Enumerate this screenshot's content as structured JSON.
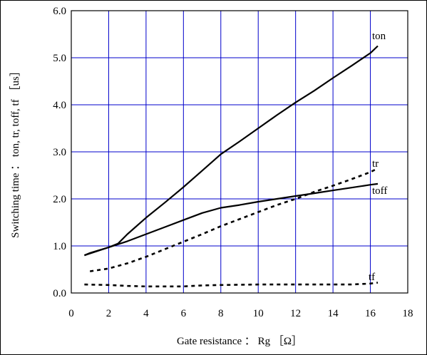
{
  "chart_data": {
    "type": "line",
    "xlabel": "Gate resistance ： Rg ［Ω］",
    "ylabel": "Switching time ： ton, tr, toff, tf ［us］",
    "xlim": [
      0,
      18
    ],
    "ylim": [
      0,
      6
    ],
    "xticks": [
      "0",
      "2",
      "4",
      "6",
      "8",
      "10",
      "12",
      "14",
      "16",
      "18"
    ],
    "yticks": [
      "0.0",
      "1.0",
      "2.0",
      "3.0",
      "4.0",
      "5.0",
      "6.0"
    ],
    "grid": true,
    "grid_color": "#0000cc",
    "series": [
      {
        "name": "ton",
        "style": "solid",
        "x": [
          0.7,
          1.0,
          1.5,
          2.0,
          2.5,
          3.0,
          4.0,
          5.0,
          6.0,
          7.0,
          8.0,
          9.0,
          10.0,
          11.0,
          12.0,
          13.0,
          14.0,
          15.0,
          16.0,
          16.4
        ],
        "y": [
          0.8,
          0.85,
          0.91,
          0.97,
          1.05,
          1.25,
          1.6,
          1.92,
          2.25,
          2.6,
          2.95,
          3.22,
          3.5,
          3.78,
          4.05,
          4.3,
          4.57,
          4.83,
          5.1,
          5.25
        ]
      },
      {
        "name": "tr",
        "style": "dashed",
        "x": [
          1.0,
          2.0,
          3.0,
          4.0,
          5.0,
          6.0,
          7.0,
          8.0,
          9.0,
          10.0,
          11.0,
          12.0,
          13.0,
          14.0,
          15.0,
          16.0,
          16.4
        ],
        "y": [
          0.46,
          0.52,
          0.63,
          0.77,
          0.93,
          1.09,
          1.25,
          1.42,
          1.57,
          1.72,
          1.87,
          2.0,
          2.15,
          2.28,
          2.42,
          2.57,
          2.65
        ]
      },
      {
        "name": "toff",
        "style": "solid",
        "x": [
          0.7,
          1.0,
          2.0,
          3.0,
          4.0,
          5.0,
          6.0,
          7.0,
          8.0,
          9.0,
          10.0,
          11.0,
          12.0,
          13.0,
          14.0,
          15.0,
          16.0,
          16.4
        ],
        "y": [
          0.8,
          0.84,
          0.97,
          1.1,
          1.25,
          1.4,
          1.55,
          1.7,
          1.81,
          1.87,
          1.94,
          2.0,
          2.06,
          2.12,
          2.18,
          2.24,
          2.3,
          2.32
        ]
      },
      {
        "name": "tf",
        "style": "dashed",
        "x": [
          0.7,
          2.0,
          3.0,
          4.0,
          5.0,
          6.0,
          7.0,
          8.0,
          10.0,
          12.0,
          14.0,
          15.0,
          16.0,
          16.4
        ],
        "y": [
          0.18,
          0.17,
          0.15,
          0.14,
          0.14,
          0.14,
          0.16,
          0.17,
          0.18,
          0.18,
          0.18,
          0.18,
          0.2,
          0.22
        ]
      }
    ]
  }
}
